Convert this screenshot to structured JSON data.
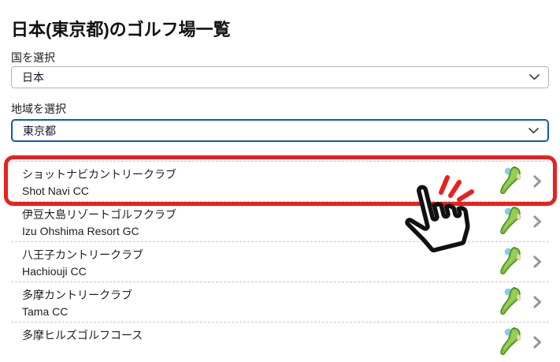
{
  "page": {
    "title": "日本(東京都)のゴルフ場一覧"
  },
  "filters": {
    "country": {
      "label": "国を選択",
      "value": "日本"
    },
    "region": {
      "label": "地域を選択",
      "value": "東京都"
    }
  },
  "courses": [
    {
      "name_ja": "ショットナビカントリークラブ",
      "name_en": "Shot Navi CC",
      "highlighted": true
    },
    {
      "name_ja": "伊豆大島リゾートゴルフクラブ",
      "name_en": "Izu Ohshima Resort GC",
      "highlighted": false
    },
    {
      "name_ja": "八王子カントリークラブ",
      "name_en": "Hachiouji CC",
      "highlighted": false
    },
    {
      "name_ja": "多摩カントリークラブ",
      "name_en": "Tama CC",
      "highlighted": false
    },
    {
      "name_ja": "多摩ヒルズゴルフコース",
      "name_en": "",
      "highlighted": false
    }
  ],
  "icons": {
    "row_icon": "golf-green-icon",
    "row_arrow": "chevron-right-icon",
    "select_arrow": "chevron-down-icon",
    "overlay": "hand-pointer-cursor"
  },
  "colors": {
    "highlight_red": "#e8211d",
    "focus_blue": "#0e56c4",
    "separator": "#c9c9c9",
    "chevron_gray": "#999999"
  }
}
